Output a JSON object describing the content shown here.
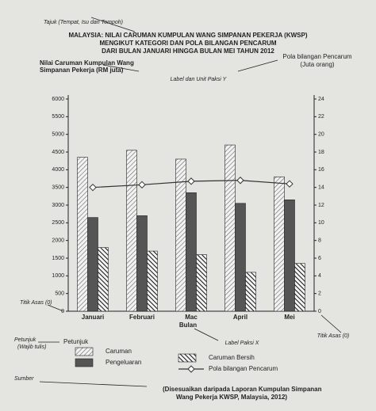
{
  "chart_data": {
    "type": "bar",
    "title": [
      "MALAYSIA: NILAI CARUMAN KUMPULAN WANG SIMPANAN PEKERJA (KWSP)",
      "MENGIKUT KATEGORI DAN POLA BILANGAN PENCARUM",
      "DARI BULAN JANUARI HINGGA BULAN MEI TAHUN 2012"
    ],
    "ylabel": [
      "Nilai Caruman Kumpulan Wang",
      "Simpanan Pekerja (RM juta)"
    ],
    "y2label": [
      "Pola bilangan Pencarum",
      "(Juta orang)"
    ],
    "xlabel": "Bulan",
    "categories": [
      "Januari",
      "Februari",
      "Mac",
      "April",
      "Mei"
    ],
    "series": [
      {
        "name": "Caruman",
        "color": "#f2f2f2",
        "pattern": "hatch-light",
        "values": [
          4350,
          4550,
          4300,
          4700,
          3800
        ]
      },
      {
        "name": "Pengeluaran",
        "color": "#555555",
        "pattern": "solid",
        "values": [
          2650,
          2700,
          3350,
          3050,
          3150
        ]
      },
      {
        "name": "Caruman Bersih",
        "color": "#222222",
        "pattern": "hatch-dark",
        "values": [
          1800,
          1700,
          1600,
          1100,
          1350
        ]
      },
      {
        "name": "Pola bilangan Pencarum",
        "color": "#333333",
        "type": "line",
        "axis": "y2",
        "values": [
          14,
          14.3,
          14.7,
          14.8,
          14.4
        ]
      }
    ],
    "ylim": [
      0,
      6000
    ],
    "yticks": [
      0,
      500,
      1000,
      1500,
      2000,
      2500,
      3000,
      3500,
      4000,
      4500,
      5000,
      5500,
      6000
    ],
    "y2lim": [
      0,
      24
    ],
    "y2ticks": [
      0,
      2,
      4,
      6,
      8,
      10,
      12,
      14,
      16,
      18,
      20,
      22,
      24
    ],
    "annotations": [
      "Tajuk (Tempat, Isu dan Tempoh)",
      "Label dan Unit Paksi Y",
      "Titik Asas (0)",
      "Titik Asas (0)",
      "Label Paksi X",
      "Petunjuk",
      "(Wajib tulis)",
      "Petunjuk",
      "Sumber"
    ],
    "source": [
      "(Disesuaikan daripada Laporan Kumpulan Simpanan",
      "Wang Pekerja KWSP, Malaysia, 2012)"
    ]
  }
}
